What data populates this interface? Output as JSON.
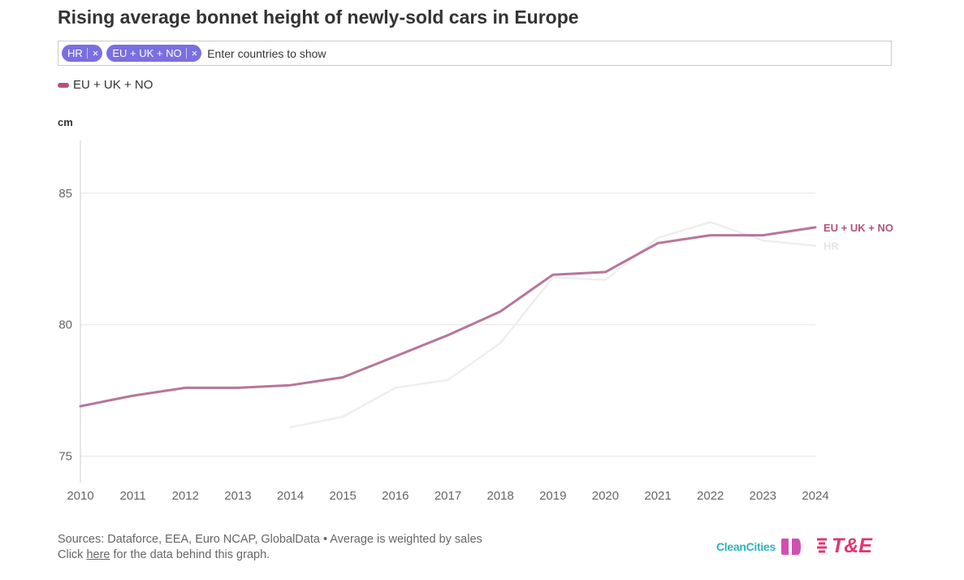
{
  "title": "Rising average bonnet height of newly-sold cars in Europe",
  "search": {
    "chips": [
      {
        "label": "HR",
        "remove": "×"
      },
      {
        "label": "EU + UK + NO",
        "remove": "×"
      }
    ],
    "placeholder": "Enter countries to show"
  },
  "legend": {
    "label": "EU + UK + NO",
    "color": "#b5527f"
  },
  "unit_label": "cm",
  "chart_data": {
    "type": "line",
    "x": [
      2010,
      2011,
      2012,
      2013,
      2014,
      2015,
      2016,
      2017,
      2018,
      2019,
      2020,
      2021,
      2022,
      2023,
      2024
    ],
    "xlim": [
      2010,
      2024
    ],
    "ylim": [
      74,
      87
    ],
    "yticks": [
      75,
      80,
      85
    ],
    "grid": true,
    "series": [
      {
        "name": "HR",
        "color": "#eeeeee",
        "label_color": "#e6e6e6",
        "values": [
          null,
          null,
          null,
          null,
          76.1,
          76.5,
          77.6,
          77.9,
          79.3,
          81.8,
          81.7,
          83.3,
          83.9,
          83.2,
          83.0
        ]
      },
      {
        "name": "EU + UK + NO",
        "color": "#b8759a",
        "label_color": "#b5527f",
        "values": [
          76.9,
          77.3,
          77.6,
          77.6,
          77.7,
          78.0,
          78.8,
          79.6,
          80.5,
          81.9,
          82.0,
          83.1,
          83.4,
          83.4,
          83.7
        ]
      }
    ]
  },
  "footer": {
    "sources": "Sources: Dataforce, EEA, Euro NCAP, GlobalData • Average is weighted by sales",
    "click_prefix": "Click ",
    "link_text": "here",
    "click_suffix": " for the data behind this graph."
  },
  "logos": {
    "cleancities": "CleanCities",
    "cleancities_color": "#2bb3c0",
    "cleancities_mark_color": "#d14fb0",
    "te": "T&E",
    "te_color": "#e2356f"
  }
}
